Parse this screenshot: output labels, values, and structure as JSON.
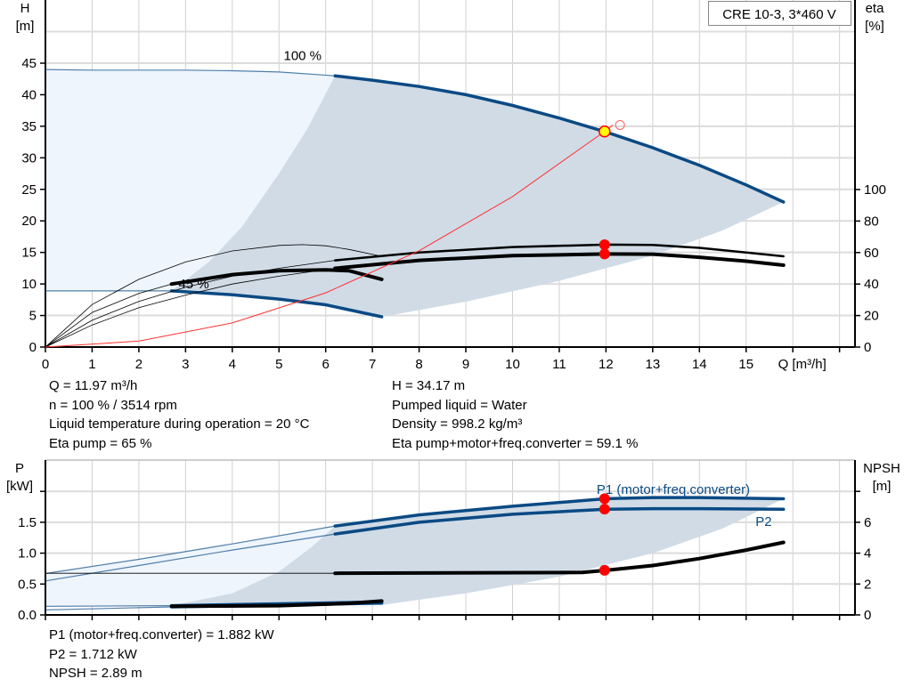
{
  "chart_data": [
    {
      "type": "line",
      "title": "CRE 10-3, 3*460 V",
      "xlabel": "Q [m³/h]",
      "ylabel": "H\n[m]",
      "ylabel_left_lines": [
        "H",
        "[m]"
      ],
      "ylabel_right_lines": [
        "eta",
        "[%]"
      ],
      "xlim": [
        0,
        17
      ],
      "ylim": [
        0,
        50
      ],
      "y2lim": [
        0,
        220
      ],
      "xticks": [
        "0",
        "1",
        "2",
        "3",
        "4",
        "5",
        "6",
        "7",
        "8",
        "9",
        "10",
        "11",
        "12",
        "13",
        "14",
        "15"
      ],
      "yticks": [
        "0",
        "5",
        "10",
        "15",
        "20",
        "25",
        "30",
        "35",
        "40",
        "45"
      ],
      "y2ticks": [
        "0",
        "20",
        "40",
        "60",
        "80",
        "100"
      ],
      "grid": true,
      "annotations": [
        "100 %",
        "45 %"
      ],
      "series": [
        {
          "id": "h100",
          "axis": "y",
          "color": "#0a4a84",
          "points": [
            [
              0,
              44
            ],
            [
              1,
              43.9
            ],
            [
              2,
              43.9
            ],
            [
              3,
              43.9
            ],
            [
              4,
              43.8
            ],
            [
              5,
              43.6
            ],
            [
              6.2,
              43.0
            ],
            [
              7,
              42.3
            ],
            [
              8,
              41.3
            ],
            [
              9,
              40
            ],
            [
              10,
              38.3
            ],
            [
              11,
              36.3
            ],
            [
              12,
              34.1
            ],
            [
              13,
              31.6
            ],
            [
              14,
              28.8
            ],
            [
              15,
              25.7
            ],
            [
              15.8,
              23
            ]
          ],
          "thick_from": 6.2
        },
        {
          "id": "h45",
          "axis": "y",
          "color": "#0a4a84",
          "points": [
            [
              0,
              8.9
            ],
            [
              2.7,
              8.9
            ],
            [
              4,
              8.3
            ],
            [
              5,
              7.6
            ],
            [
              6,
              6.7
            ],
            [
              7.2,
              4.8
            ]
          ],
          "thick_from": 2.7
        },
        {
          "id": "eta_pump_100",
          "axis": "y2",
          "color": "#000000",
          "points": [
            [
              0,
              0
            ],
            [
              1,
              17
            ],
            [
              2,
              29
            ],
            [
              3,
              38
            ],
            [
              4,
              45
            ],
            [
              5,
              50
            ],
            [
              6.2,
              55
            ],
            [
              8,
              60
            ],
            [
              10,
              63.5
            ],
            [
              12,
              65
            ],
            [
              13,
              64.8
            ],
            [
              14,
              63
            ],
            [
              15,
              60
            ],
            [
              15.8,
              57.6
            ]
          ],
          "thick_from": 6.2
        },
        {
          "id": "eta_total_100",
          "axis": "y2",
          "color": "#000000",
          "points": [
            [
              0,
              0
            ],
            [
              1,
              14
            ],
            [
              2,
              25
            ],
            [
              3,
              33
            ],
            [
              4,
              40
            ],
            [
              5,
              45
            ],
            [
              6.2,
              50
            ],
            [
              8,
              55
            ],
            [
              10,
              58
            ],
            [
              12,
              59.1
            ],
            [
              13,
              59
            ],
            [
              14,
              57
            ],
            [
              15,
              54.5
            ],
            [
              15.8,
              52
            ]
          ],
          "thick_from": 6.2
        },
        {
          "id": "eta_pump_45",
          "axis": "y2",
          "color": "#000000",
          "points": [
            [
              0,
              0
            ],
            [
              1,
              27
            ],
            [
              2,
              43
            ],
            [
              3,
              54
            ],
            [
              4,
              61
            ],
            [
              5,
              64.5
            ],
            [
              5.5,
              65
            ],
            [
              6,
              64.3
            ],
            [
              6.5,
              62
            ],
            [
              7.2,
              57.6
            ]
          ],
          "thick_from": 99
        },
        {
          "id": "eta_total_45",
          "axis": "y2",
          "color": "#000000",
          "points": [
            [
              0,
              0
            ],
            [
              1,
              22
            ],
            [
              2,
              34
            ],
            [
              2.7,
              40
            ],
            [
              4,
              46
            ],
            [
              5,
              48.5
            ],
            [
              6,
              49
            ],
            [
              6.5,
              48.5
            ],
            [
              7.2,
              43
            ]
          ],
          "thick_from": 2.7
        },
        {
          "id": "system_curve",
          "axis": "y",
          "color": "#ff3030",
          "points": [
            [
              0,
              0
            ],
            [
              2,
              0.95
            ],
            [
              4,
              3.82
            ],
            [
              6,
              8.59
            ],
            [
              8,
              15.26
            ],
            [
              10,
              23.85
            ],
            [
              12,
              34.34
            ],
            [
              12.15,
              35.2
            ]
          ],
          "thick_from": 99
        }
      ],
      "duty_point": {
        "Q": 11.97,
        "H": 34.17,
        "eta_pump": 65,
        "eta_total": 59.1
      },
      "operating_range_full": [
        [
          0,
          44
        ],
        [
          1,
          43.9
        ],
        [
          2,
          43.9
        ],
        [
          3,
          43.9
        ],
        [
          4,
          43.8
        ],
        [
          5,
          43.6
        ],
        [
          6.2,
          43.0
        ],
        [
          5.6,
          34.5
        ],
        [
          5,
          27.5
        ],
        [
          4.2,
          19
        ],
        [
          3.5,
          13.5
        ],
        [
          2.7,
          8.9
        ],
        [
          0,
          8.9
        ]
      ],
      "operating_range": [
        [
          2.7,
          8.9
        ],
        [
          3.5,
          13.5
        ],
        [
          4.2,
          19
        ],
        [
          5,
          27.5
        ],
        [
          5.6,
          34.5
        ],
        [
          6.2,
          43
        ],
        [
          7,
          42.3
        ],
        [
          8,
          41.3
        ],
        [
          9,
          40
        ],
        [
          10,
          38.3
        ],
        [
          11,
          36.3
        ],
        [
          12,
          34.1
        ],
        [
          13,
          31.6
        ],
        [
          14,
          28.8
        ],
        [
          15,
          25.7
        ],
        [
          15.8,
          23
        ],
        [
          14.5,
          18.5
        ],
        [
          13,
          14.5
        ],
        [
          11,
          10.5
        ],
        [
          9,
          7.2
        ],
        [
          7.2,
          4.8
        ],
        [
          6,
          6.7
        ],
        [
          5,
          7.6
        ],
        [
          4,
          8.3
        ]
      ],
      "colors": {
        "range_light": "#eef5fd",
        "range_dark": "#d0dbe6",
        "curve": "#0a4a84",
        "duty": "#ff0000",
        "duty_fill": "#ffff00"
      }
    },
    {
      "type": "line",
      "ylabel_left_lines": [
        "P",
        "[kW]"
      ],
      "ylabel_right_lines": [
        "NPSH",
        "[m]"
      ],
      "xlim": [
        0,
        17
      ],
      "ylim": [
        0,
        2.5
      ],
      "y2lim": [
        0,
        10
      ],
      "yticks": [
        "0.0",
        "0.5",
        "1.0",
        "1.5"
      ],
      "y2ticks": [
        "0",
        "2",
        "4",
        "6"
      ],
      "grid": true,
      "series": [
        {
          "id": "p1_100",
          "name": "P1 (motor+freq.converter)",
          "axis": "y",
          "color": "#0a4a84",
          "points": [
            [
              0,
              0.67
            ],
            [
              2,
              0.9
            ],
            [
              4,
              1.15
            ],
            [
              6.2,
              1.44
            ],
            [
              8,
              1.62
            ],
            [
              10,
              1.76
            ],
            [
              12,
              1.882
            ],
            [
              13,
              1.9
            ],
            [
              14,
              1.9
            ],
            [
              15.8,
              1.88
            ]
          ],
          "thick_from": 6.2
        },
        {
          "id": "p2_100",
          "name": "P2",
          "axis": "y",
          "color": "#0a4a84",
          "points": [
            [
              0,
              0.55
            ],
            [
              2,
              0.8
            ],
            [
              4,
              1.05
            ],
            [
              6.2,
              1.31
            ],
            [
              8,
              1.5
            ],
            [
              10,
              1.63
            ],
            [
              12,
              1.712
            ],
            [
              13,
              1.72
            ],
            [
              14,
              1.72
            ],
            [
              15.8,
              1.71
            ]
          ],
          "thick_from": 6.2
        },
        {
          "id": "p1_45",
          "axis": "y",
          "color": "#0a4a84",
          "points": [
            [
              0,
              0.14
            ],
            [
              2.7,
              0.15
            ],
            [
              5,
              0.18
            ],
            [
              7.2,
              0.21
            ]
          ],
          "thick_from": 2.7
        },
        {
          "id": "p2_45",
          "axis": "y",
          "color": "#0a4a84",
          "points": [
            [
              0,
              0.08
            ],
            [
              2.7,
              0.13
            ],
            [
              5,
              0.16
            ],
            [
              7.2,
              0.19
            ]
          ],
          "thick_from": 2.7
        },
        {
          "id": "npsh_100",
          "axis": "y2",
          "color": "#000000",
          "points": [
            [
              0,
              2.7
            ],
            [
              6.2,
              2.7
            ],
            [
              11.5,
              2.75
            ],
            [
              12,
              2.89
            ],
            [
              13,
              3.2
            ],
            [
              14,
              3.65
            ],
            [
              15,
              4.2
            ],
            [
              15.8,
              4.7
            ]
          ],
          "thick_from": 6.2
        },
        {
          "id": "npsh_45",
          "axis": "y2",
          "color": "#000000",
          "points": [
            [
              2.7,
              0.56
            ],
            [
              5,
              0.6
            ],
            [
              6.5,
              0.75
            ],
            [
              7.2,
              0.9
            ]
          ],
          "thick_from": 2.7
        }
      ],
      "duty_point": {
        "Q": 11.97,
        "P1": 1.882,
        "P2": 1.712,
        "NPSH": 2.89
      },
      "operating_range_full": [
        [
          0,
          0.67
        ],
        [
          2,
          0.9
        ],
        [
          4,
          1.15
        ],
        [
          6.2,
          1.44
        ],
        [
          5.7,
          1.1
        ],
        [
          5,
          0.7
        ],
        [
          4,
          0.35
        ],
        [
          2.7,
          0.15
        ],
        [
          0,
          0.12
        ]
      ],
      "operating_range": [
        [
          2.7,
          0.15
        ],
        [
          4,
          0.35
        ],
        [
          5,
          0.7
        ],
        [
          5.7,
          1.1
        ],
        [
          6.2,
          1.44
        ],
        [
          8,
          1.62
        ],
        [
          10,
          1.76
        ],
        [
          12,
          1.882
        ],
        [
          13,
          1.9
        ],
        [
          14,
          1.9
        ],
        [
          15.8,
          1.88
        ],
        [
          14.5,
          1.4
        ],
        [
          13,
          1.0
        ],
        [
          11,
          0.62
        ],
        [
          9,
          0.35
        ],
        [
          7.2,
          0.16
        ]
      ]
    }
  ],
  "info_top_left": [
    "Q = 11.97 m³/h",
    "n = 100 % / 3514 rpm",
    "Liquid temperature during operation = 20 °C",
    "Eta pump = 65 %"
  ],
  "info_top_right": [
    "H = 34.17 m",
    "Pumped liquid = Water",
    "Density = 998.2 kg/m³",
    "Eta pump+motor+freq.converter = 59.1 %"
  ],
  "info_bottom": [
    "P1 (motor+freq.converter) = 1.882 kW",
    "P2 = 1.712 kW",
    "NPSH = 2.89 m"
  ]
}
